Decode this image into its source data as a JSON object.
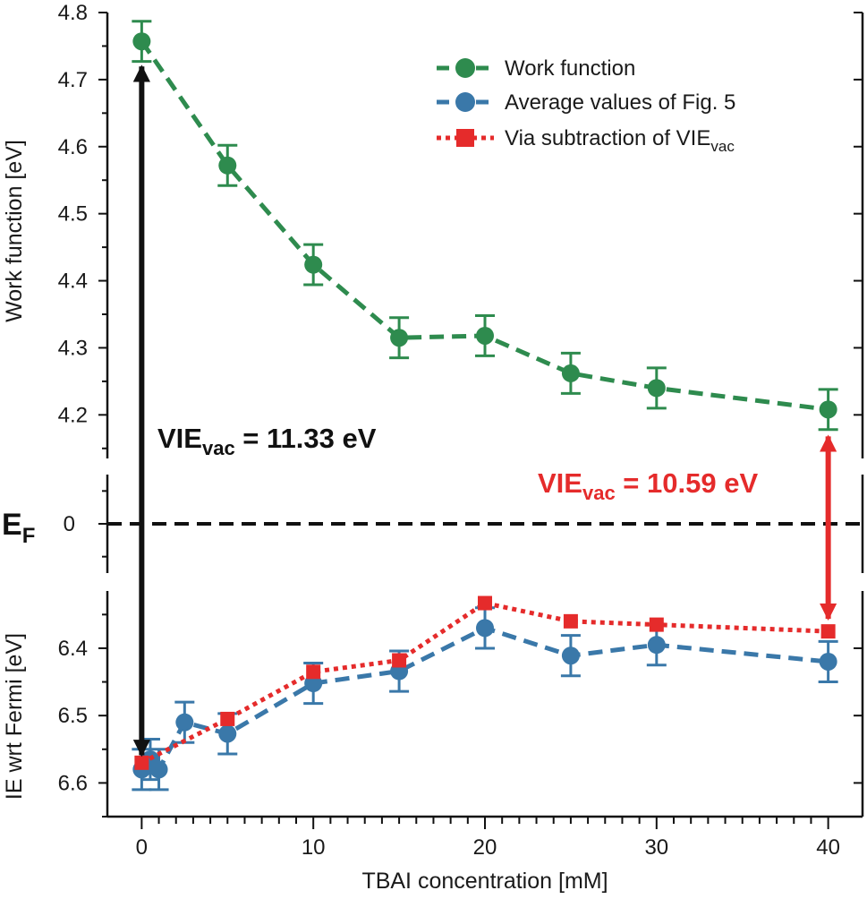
{
  "chart_data": {
    "type": "line",
    "xlabel": "TBAI concentration [mM]",
    "xlim": [
      -2,
      42
    ],
    "x_ticks": [
      0,
      10,
      20,
      30,
      40
    ],
    "panels": {
      "top": {
        "ylabel": "Work function [eV]",
        "ylim": [
          4.135,
          4.8
        ],
        "y_ticks": [
          4.2,
          4.3,
          4.4,
          4.5,
          4.6,
          4.7,
          4.8
        ]
      },
      "middle": {
        "ylim": [
          -0.6,
          0.6
        ],
        "y_ticks": [
          0
        ],
        "y_tick_label": "0",
        "ef_label": "E",
        "ef_sub": "F"
      },
      "bottom": {
        "ylabel": "IE wrt Fermi [eV]",
        "ylim": [
          6.65,
          6.315
        ],
        "inverted": true,
        "y_ticks": [
          6.4,
          6.5,
          6.6
        ]
      }
    },
    "series": [
      {
        "name": "Work function",
        "panel": "top",
        "color": "#2e8b4e",
        "line": "dashed",
        "marker": "circle",
        "x": [
          0,
          5,
          10,
          15,
          20,
          25,
          30,
          40
        ],
        "y": [
          4.757,
          4.572,
          4.424,
          4.315,
          4.318,
          4.262,
          4.24,
          4.208
        ],
        "err": [
          0.03,
          0.03,
          0.03,
          0.03,
          0.03,
          0.03,
          0.03,
          0.03
        ]
      },
      {
        "name": "Average values of Fig. 5",
        "panel": "bottom",
        "color": "#3a78a9",
        "line": "dashed",
        "marker": "circle",
        "x": [
          0,
          0.5,
          1,
          2.5,
          5,
          10,
          15,
          20,
          25,
          30,
          40
        ],
        "y": [
          6.58,
          6.565,
          6.58,
          6.51,
          6.527,
          6.452,
          6.434,
          6.37,
          6.411,
          6.395,
          6.42
        ],
        "err": [
          0.03,
          0.03,
          0.03,
          0.03,
          0.03,
          0.03,
          0.03,
          0.03,
          0.03,
          0.03,
          0.03
        ]
      },
      {
        "name": "Via subtraction of VIE",
        "name_sub": "vac",
        "panel": "bottom",
        "color": "#e52b2b",
        "line": "dotted",
        "marker": "square",
        "x": [
          0,
          5,
          10,
          15,
          20,
          25,
          30,
          40
        ],
        "y": [
          6.57,
          6.505,
          6.435,
          6.418,
          6.333,
          6.36,
          6.365,
          6.375
        ],
        "err": []
      }
    ],
    "annotations": [
      {
        "text": "VIE",
        "sub": "vac",
        "rest": " = 11.33 eV",
        "color": "#111111",
        "x": 0
      },
      {
        "text": "VIE",
        "sub": "vac",
        "rest": " = 10.59 eV",
        "color": "#e52b2b",
        "x": 40
      }
    ],
    "legend_position": "top-right"
  }
}
